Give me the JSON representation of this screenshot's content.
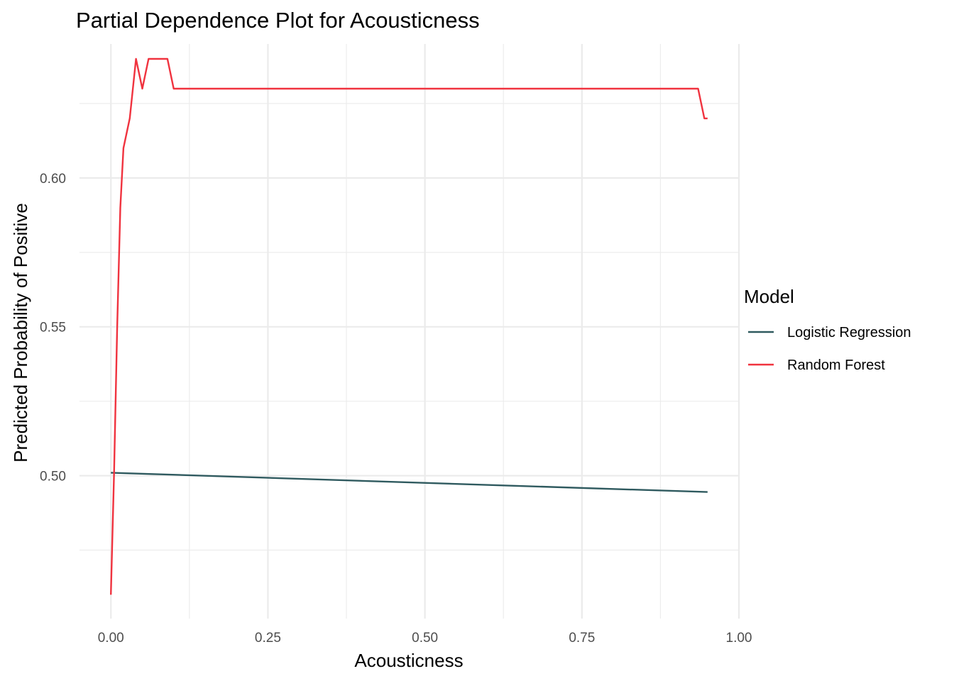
{
  "chart_data": {
    "type": "line",
    "title": "Partial Dependence Plot for Acousticness",
    "xlabel": "Acousticness",
    "ylabel": "Predicted Probability of Positive",
    "xlim": [
      -0.05,
      1.0
    ],
    "ylim": [
      0.452,
      0.645
    ],
    "x_ticks": [
      0.0,
      0.25,
      0.5,
      0.75,
      1.0
    ],
    "x_tick_labels": [
      "0.00",
      "0.25",
      "0.50",
      "0.75",
      "1.00"
    ],
    "y_ticks": [
      0.5,
      0.55,
      0.6
    ],
    "y_tick_labels": [
      "0.50",
      "0.55",
      "0.60"
    ],
    "grid": true,
    "legend": {
      "title": "Model",
      "position": "right",
      "entries": [
        "Logistic Regression",
        "Random Forest"
      ]
    },
    "series": [
      {
        "name": "Logistic Regression",
        "color": "#2f5a5f",
        "x": [
          0.0,
          0.95
        ],
        "y": [
          0.501,
          0.4945
        ]
      },
      {
        "name": "Random Forest",
        "color": "#f0333f",
        "x": [
          0.0,
          0.005,
          0.01,
          0.015,
          0.02,
          0.03,
          0.04,
          0.05,
          0.06,
          0.07,
          0.08,
          0.09,
          0.1,
          0.15,
          0.2,
          0.3,
          0.4,
          0.5,
          0.6,
          0.7,
          0.8,
          0.9,
          0.935,
          0.945,
          0.95
        ],
        "y": [
          0.46,
          0.501,
          0.55,
          0.59,
          0.61,
          0.62,
          0.64,
          0.63,
          0.64,
          0.64,
          0.64,
          0.64,
          0.63,
          0.63,
          0.63,
          0.63,
          0.63,
          0.63,
          0.63,
          0.63,
          0.63,
          0.63,
          0.63,
          0.62,
          0.62
        ]
      }
    ]
  }
}
